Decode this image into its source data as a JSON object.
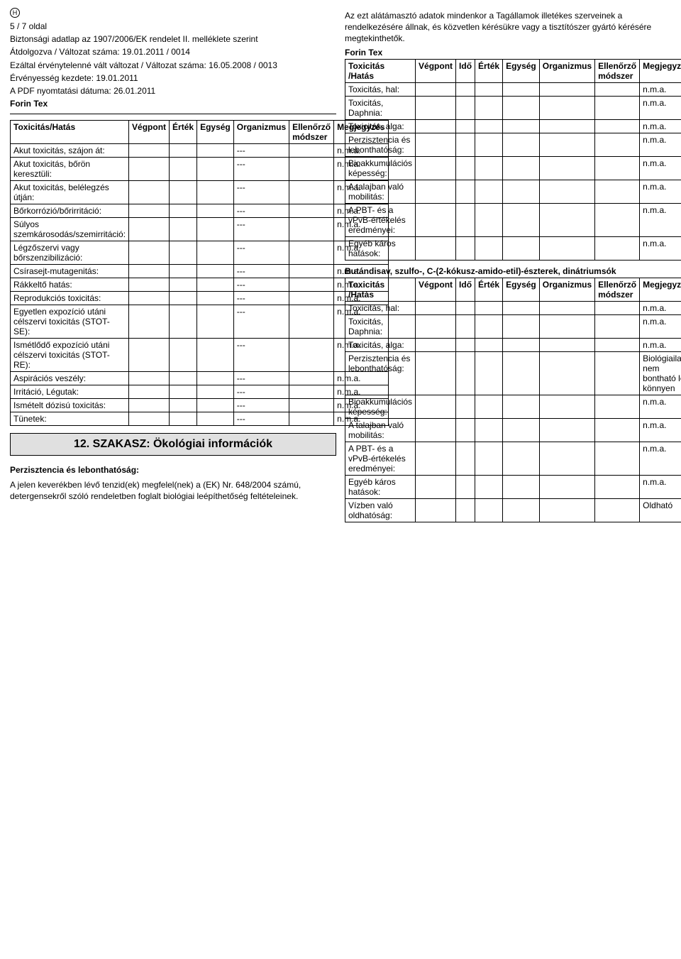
{
  "header": {
    "marker": "H",
    "page_info": "5 / 7 oldal",
    "line1": "Biztonsági adatlap az 1907/2006/EK rendelet II. melléklete szerint",
    "line2": "Átdolgozva / Változat száma: 19.01.2011 / 0014",
    "line3": "Ezáltal érvénytelenné vált változat / Változat száma: 16.05.2008 / 0013",
    "line4": "Érvényesség kezdete: 19.01.2011",
    "line5": "A PDF nyomtatási dátuma: 26.01.2011",
    "product": "Forin Tex"
  },
  "left_table": {
    "headers": [
      "Toxicitás/Hatás",
      "Végpont",
      "Érték",
      "Egység",
      "Organizmus",
      "Ellenőrző módszer",
      "Megjegyzés"
    ],
    "rows": [
      {
        "label": "Akut toxicitás, szájon át:",
        "org": "---",
        "note": "n.m.a."
      },
      {
        "label": "Akut toxicitás, bőrön keresztüli:",
        "org": "---",
        "note": "n.m.a."
      },
      {
        "label": "Akut toxicitás, belélegzés útján:",
        "org": "---",
        "note": "n.m.a."
      },
      {
        "label": "Bőrkorrózió/bőrirritáció:",
        "org": "---",
        "note": "n.m.a."
      },
      {
        "label": "Súlyos szemkárosodás/szemirritáció:",
        "org": "---",
        "note": "n.m.a."
      },
      {
        "label": "Légzőszervi vagy bőrszenzibilizáció:",
        "org": "---",
        "note": "n.m.a."
      },
      {
        "label": "Csírasejt-mutagenitás:",
        "org": "---",
        "note": "n.m.a."
      },
      {
        "label": "Rákkeltő hatás:",
        "org": "---",
        "note": "n.m.a."
      },
      {
        "label": "Reprodukciós toxicitás:",
        "org": "---",
        "note": "n.m.a."
      },
      {
        "label": "Egyetlen expozíció utáni célszervi toxicitás (STOT-SE):",
        "org": "---",
        "note": "n.m.a."
      },
      {
        "label": "Ismétlődő expozíció utáni célszervi toxicitás (STOT-RE):",
        "org": "---",
        "note": "n.m.a."
      },
      {
        "label": "Aspirációs veszély:",
        "org": "---",
        "note": "n.m.a."
      },
      {
        "label": "Irritáció, Légutak:",
        "org": "---",
        "note": "n.m.a."
      },
      {
        "label": "Ismételt dózisú toxicitás:",
        "org": "---",
        "note": "n.m.a."
      },
      {
        "label": "Tünetek:",
        "org": "---",
        "note": "n.m.a."
      }
    ]
  },
  "section12_title": "12. SZAKASZ: Ökológiai információk",
  "persistence": {
    "label": "Perzisztencia és lebonthatóság:",
    "text": "A jelen keverékben lévő tenzid(ek) megfelel(nek) a (EK) Nr. 648/2004 számú, detergensekről szóló rendeletben foglalt biológiai leépíthetőség feltételeinek."
  },
  "right_intro": "Az ezt alátámasztó adatok mindenkor a Tagállamok illetékes szerveinek a rendelkezésére állnak, és közvetlen kérésükre vagy a tisztítószer gyártó kérésére megtekinthetők.",
  "right1": {
    "title": "Forin Tex",
    "headers": [
      "Toxicitás /Hatás",
      "Végpont",
      "Idő",
      "Érték",
      "Egység",
      "Organizmus",
      "Ellenőrző módszer",
      "Megjegyzés"
    ],
    "rows": [
      {
        "label": "Toxicitás, hal:",
        "note": "n.m.a."
      },
      {
        "label": "Toxicitás, Daphnia:",
        "note": "n.m.a."
      },
      {
        "label": "Toxicitás, alga:",
        "note": "n.m.a."
      },
      {
        "label": "Perzisztencia és lebonthatóság:",
        "note": "n.m.a."
      },
      {
        "label": "Bioakkumulációs képesség:",
        "note": "n.m.a."
      },
      {
        "label": "A talajban való mobilitás:",
        "note": "n.m.a."
      },
      {
        "label": "A PBT- és a vPvB-értékelés eredményei:",
        "note": "n.m.a."
      },
      {
        "label": "Egyéb káros hatások:",
        "note": "n.m.a."
      }
    ]
  },
  "right2": {
    "title": "Butándisav, szulfo-, C-(2-kókusz-amido-etil)-észterek, dinátriumsók",
    "headers": [
      "Toxicitás /Hatás",
      "Végpont",
      "Idő",
      "Érték",
      "Egység",
      "Organizmus",
      "Ellenőrző módszer",
      "Megjegyzés"
    ],
    "rows": [
      {
        "label": "Toxicitás, hal:",
        "note": "n.m.a."
      },
      {
        "label": "Toxicitás, Daphnia:",
        "note": "n.m.a."
      },
      {
        "label": "Toxicitás, alga:",
        "note": "n.m.a."
      },
      {
        "label": "Perzisztencia és lebonthatóság:",
        "note": "Biológiailag nem bontható le könnyen"
      },
      {
        "label": "Bioakkumulációs képesség:",
        "note": "n.m.a."
      },
      {
        "label": "A talajban való mobilitás:",
        "note": "n.m.a."
      },
      {
        "label": "A PBT- és a vPvB-értékelés eredményei:",
        "note": "n.m.a."
      },
      {
        "label": "Egyéb káros hatások:",
        "note": "n.m.a."
      },
      {
        "label": "Vízben való oldhatóság:",
        "note": "Oldható"
      }
    ]
  }
}
